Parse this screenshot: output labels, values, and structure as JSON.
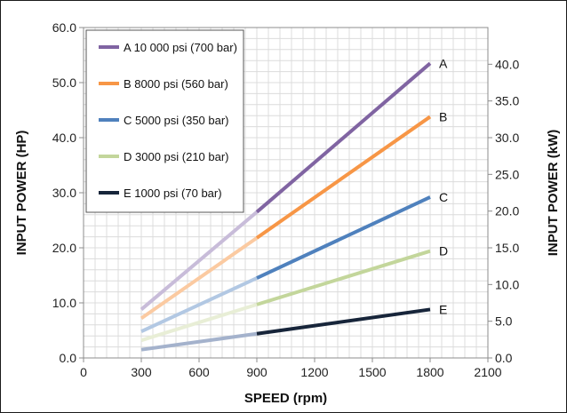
{
  "chart_data": {
    "type": "line",
    "title": "",
    "xlabel": "SPEED (rpm)",
    "ylabel": "INPUT POWER (HP)",
    "y2label": "INPUT POWER (kW)",
    "xlim": [
      0,
      2100
    ],
    "ylim": [
      0,
      60
    ],
    "y2lim": [
      0,
      45
    ],
    "x_ticks": [
      "0",
      "300",
      "600",
      "900",
      "1200",
      "1500",
      "1800",
      "2100"
    ],
    "y_ticks": [
      "0.0",
      "10.0",
      "20.0",
      "30.0",
      "40.0",
      "50.0",
      "60.0"
    ],
    "y2_ticks": [
      "0.0",
      "5.0",
      "10.0",
      "15.0",
      "20.0",
      "25.0",
      "30.0",
      "35.0",
      "40.0"
    ],
    "grid": true,
    "legend_position": "top-left",
    "series": [
      {
        "name": "A  10 000 psi (700 bar)",
        "end_label": "A",
        "color": "#8064a2",
        "light_color": "#c8bcd9",
        "x": [
          300,
          900,
          1800
        ],
        "y": [
          8.8,
          26.5,
          53.5
        ]
      },
      {
        "name": "B  8000 psi (560 bar)",
        "end_label": "B",
        "color": "#f79646",
        "light_color": "#fbcaa1",
        "x": [
          300,
          900,
          1800
        ],
        "y": [
          7.2,
          21.8,
          43.8
        ]
      },
      {
        "name": "C  5000 psi (350 bar)",
        "end_label": "C",
        "color": "#4f81bd",
        "light_color": "#b2c8e3",
        "x": [
          300,
          900,
          1800
        ],
        "y": [
          4.8,
          14.5,
          29.2
        ]
      },
      {
        "name": "D  3000 psi (210 bar)",
        "end_label": "D",
        "color": "#c3d69b",
        "light_color": "#e8eed6",
        "x": [
          300,
          900,
          1800
        ],
        "y": [
          3.2,
          9.7,
          19.4
        ]
      },
      {
        "name": "E  1000 psi (70 bar)",
        "end_label": "E",
        "color": "#17253a",
        "light_color": "#a4b2cc",
        "x": [
          300,
          900,
          1800
        ],
        "y": [
          1.5,
          4.4,
          8.8
        ]
      }
    ]
  }
}
